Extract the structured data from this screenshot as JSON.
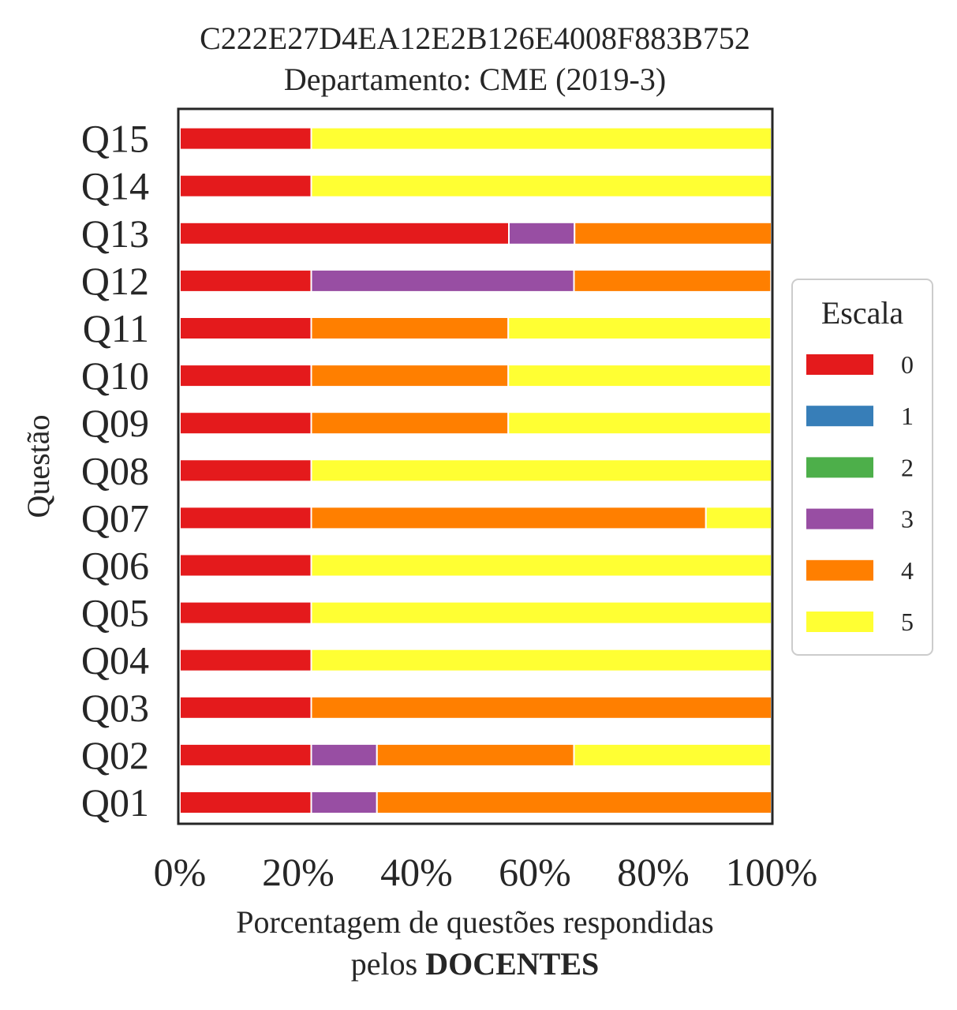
{
  "chart_data": {
    "type": "bar",
    "orientation": "horizontal",
    "stacked": true,
    "title": "C222E27D4EA12E2B126E4008F883B752",
    "subtitle": "Departamento: CME (2019-3)",
    "ylabel": "Questão",
    "xlabel_line1": "Porcentagem de questões respondidas",
    "xlabel_line2_prefix": "pelos ",
    "xlabel_line2_bold": "DOCENTES",
    "xlim": [
      0,
      100
    ],
    "x_ticks": [
      "0%",
      "20%",
      "40%",
      "60%",
      "80%",
      "100%"
    ],
    "grid": false,
    "legend_placement": "right",
    "legend_title": "Escala",
    "categories": [
      "Q01",
      "Q02",
      "Q03",
      "Q04",
      "Q05",
      "Q06",
      "Q07",
      "Q08",
      "Q09",
      "Q10",
      "Q11",
      "Q12",
      "Q13",
      "Q14",
      "Q15"
    ],
    "series": [
      {
        "name": "0",
        "color": "#e41a1c",
        "values": [
          22.2,
          22.2,
          22.2,
          22.2,
          22.2,
          22.2,
          22.2,
          22.2,
          22.2,
          22.2,
          22.2,
          22.2,
          55.6,
          22.2,
          22.2
        ]
      },
      {
        "name": "1",
        "color": "#377eb8",
        "values": [
          0,
          0,
          0,
          0,
          0,
          0,
          0,
          0,
          0,
          0,
          0,
          0,
          0,
          0,
          0
        ]
      },
      {
        "name": "2",
        "color": "#4daf4a",
        "values": [
          0,
          0,
          0,
          0,
          0,
          0,
          0,
          0,
          0,
          0,
          0,
          0,
          0,
          0,
          0
        ]
      },
      {
        "name": "3",
        "color": "#984ea3",
        "values": [
          11.1,
          11.1,
          0,
          0,
          0,
          0,
          0,
          0,
          0,
          0,
          0,
          44.4,
          11.1,
          0,
          0
        ]
      },
      {
        "name": "4",
        "color": "#ff7f00",
        "values": [
          66.7,
          33.3,
          77.8,
          0,
          0,
          0,
          66.7,
          0,
          33.3,
          33.3,
          33.3,
          33.3,
          33.3,
          0,
          0
        ]
      },
      {
        "name": "5",
        "color": "#ffff33",
        "values": [
          0,
          33.3,
          0,
          77.8,
          77.8,
          77.8,
          11.1,
          77.8,
          44.4,
          44.4,
          44.4,
          0,
          0,
          77.8,
          77.8
        ]
      }
    ]
  }
}
